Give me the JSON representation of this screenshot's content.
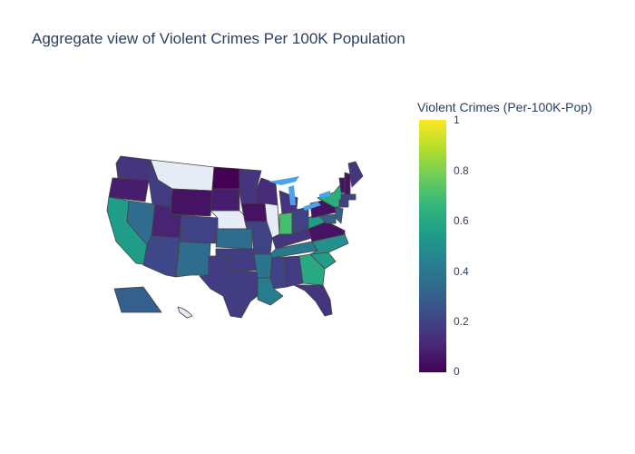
{
  "title": "Aggregate view of Violent Crimes Per 100K Population",
  "colorbar": {
    "title": "Violent Crimes (Per-100K-Pop)",
    "ticks": [
      "0",
      "0.2",
      "0.4",
      "0.6",
      "0.8",
      "1"
    ],
    "colorscale": [
      "#440154",
      "#482878",
      "#3e4989",
      "#31688e",
      "#26828e",
      "#1f9e89",
      "#35b779",
      "#6ece58",
      "#b5de2b",
      "#fde725"
    ],
    "range": [
      0,
      1
    ]
  },
  "colors": {
    "no_data": "#e5ecf6",
    "lakes": "#4aa3e8",
    "border": "#444444"
  },
  "map_data": {
    "type": "choropleth",
    "scope": "usa",
    "states": [
      {
        "state": "WA",
        "value": 0.15
      },
      {
        "state": "OR",
        "value": 0.08
      },
      {
        "state": "CA",
        "value": 0.55
      },
      {
        "state": "NV",
        "value": 0.35
      },
      {
        "state": "ID",
        "value": 0.18
      },
      {
        "state": "MT",
        "value": null
      },
      {
        "state": "WY",
        "value": 0.05
      },
      {
        "state": "UT",
        "value": 0.1
      },
      {
        "state": "AZ",
        "value": 0.22
      },
      {
        "state": "CO",
        "value": 0.2
      },
      {
        "state": "NM",
        "value": 0.35
      },
      {
        "state": "ND",
        "value": 0.0
      },
      {
        "state": "SD",
        "value": 0.08
      },
      {
        "state": "NE",
        "value": null
      },
      {
        "state": "KS",
        "value": 0.35
      },
      {
        "state": "OK",
        "value": 0.18
      },
      {
        "state": "TX",
        "value": 0.18
      },
      {
        "state": "MN",
        "value": 0.15
      },
      {
        "state": "IA",
        "value": 0.05
      },
      {
        "state": "MO",
        "value": 0.2
      },
      {
        "state": "AR",
        "value": 0.38
      },
      {
        "state": "LA",
        "value": 0.42
      },
      {
        "state": "WI",
        "value": 0.12
      },
      {
        "state": "IL",
        "value": null
      },
      {
        "state": "MI",
        "value": 0.15
      },
      {
        "state": "IN",
        "value": 0.7
      },
      {
        "state": "OH",
        "value": 0.2
      },
      {
        "state": "KY",
        "value": 0.15
      },
      {
        "state": "TN",
        "value": 0.4
      },
      {
        "state": "MS",
        "value": 0.2
      },
      {
        "state": "AL",
        "value": 0.18
      },
      {
        "state": "GA",
        "value": 0.6
      },
      {
        "state": "FL",
        "value": 0.15
      },
      {
        "state": "SC",
        "value": 0.55
      },
      {
        "state": "NC",
        "value": 0.5
      },
      {
        "state": "VA",
        "value": 0.05
      },
      {
        "state": "WV",
        "value": 0.55
      },
      {
        "state": "PA",
        "value": 0.05
      },
      {
        "state": "NY",
        "value": 0.62
      },
      {
        "state": "VT",
        "value": 0.05
      },
      {
        "state": "NH",
        "value": 0.05
      },
      {
        "state": "ME",
        "value": 0.15
      },
      {
        "state": "MA",
        "value": 0.2
      },
      {
        "state": "CT",
        "value": 0.2
      },
      {
        "state": "NJ",
        "value": 0.3
      },
      {
        "state": "MD",
        "value": 0.3
      },
      {
        "state": "AK",
        "value": 0.3
      },
      {
        "state": "HI",
        "value": null
      }
    ]
  }
}
